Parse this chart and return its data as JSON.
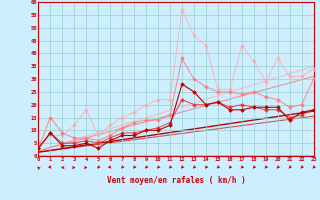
{
  "xlabel": "Vent moyen/en rafales ( km/h )",
  "background_color": "#cceeff",
  "grid_color": "#99cccc",
  "x_ticks": [
    0,
    1,
    2,
    3,
    4,
    5,
    6,
    7,
    8,
    9,
    10,
    11,
    12,
    13,
    14,
    15,
    16,
    17,
    18,
    19,
    20,
    21,
    22,
    23
  ],
  "ylim": [
    0,
    60
  ],
  "yticks": [
    0,
    5,
    10,
    15,
    20,
    25,
    30,
    35,
    40,
    45,
    50,
    55,
    60
  ],
  "xlim": [
    0,
    23
  ],
  "lines": [
    {
      "x": [
        0,
        1,
        2,
        3,
        4,
        5,
        6,
        7,
        8,
        9,
        10,
        11,
        12,
        13,
        14,
        15,
        16,
        17,
        18,
        19,
        20,
        21,
        22,
        23
      ],
      "y": [
        3,
        8,
        8,
        12,
        18,
        8,
        12,
        15,
        17,
        20,
        22,
        22,
        57,
        47,
        43,
        26,
        26,
        43,
        37,
        29,
        38,
        31,
        31,
        34
      ],
      "color": "#ffaaaa",
      "marker": "D",
      "markersize": 2.0,
      "linewidth": 0.7,
      "alpha": 0.8
    },
    {
      "x": [
        0,
        1,
        2,
        3,
        4,
        5,
        6,
        7,
        8,
        9,
        10,
        11,
        12,
        13,
        14,
        15,
        16,
        17,
        18,
        19,
        20,
        21,
        22,
        23
      ],
      "y": [
        3,
        15,
        9,
        7,
        7,
        6,
        8,
        11,
        13,
        14,
        14,
        16,
        38,
        30,
        27,
        25,
        25,
        24,
        25,
        23,
        22,
        19,
        20,
        30
      ],
      "color": "#ff7777",
      "marker": "D",
      "markersize": 2.0,
      "linewidth": 0.7,
      "alpha": 0.85
    },
    {
      "x": [
        0,
        1,
        2,
        3,
        4,
        5,
        6,
        7,
        8,
        9,
        10,
        11,
        12,
        13,
        14,
        15,
        16,
        17,
        18,
        19,
        20,
        21,
        22,
        23
      ],
      "y": [
        3,
        9,
        5,
        5,
        6,
        5,
        7,
        9,
        9,
        10,
        11,
        13,
        22,
        20,
        20,
        21,
        19,
        20,
        19,
        18,
        18,
        15,
        16,
        18
      ],
      "color": "#dd3333",
      "marker": "D",
      "markersize": 2.0,
      "linewidth": 0.7,
      "alpha": 0.9
    },
    {
      "x": [
        0,
        1,
        2,
        3,
        4,
        5,
        6,
        7,
        8,
        9,
        10,
        11,
        12,
        13,
        14,
        15,
        16,
        17,
        18,
        19,
        20,
        21,
        22,
        23
      ],
      "y": [
        3,
        9,
        4,
        4,
        5,
        3,
        6,
        8,
        8,
        10,
        10,
        12,
        28,
        25,
        20,
        21,
        18,
        18,
        19,
        19,
        19,
        14,
        17,
        18
      ],
      "color": "#bb0000",
      "marker": "D",
      "markersize": 2.0,
      "linewidth": 0.8,
      "alpha": 1.0
    }
  ],
  "ref_lines": [
    {
      "x": [
        0,
        23
      ],
      "y": [
        2.0,
        35.0
      ],
      "color": "#ffaaaa",
      "linewidth": 0.8,
      "alpha": 0.7
    },
    {
      "x": [
        0,
        23
      ],
      "y": [
        2.0,
        31.0
      ],
      "color": "#ff7777",
      "linewidth": 0.8,
      "alpha": 0.8
    },
    {
      "x": [
        0,
        23
      ],
      "y": [
        1.5,
        15.5
      ],
      "color": "#dd3333",
      "linewidth": 0.8,
      "alpha": 0.85
    },
    {
      "x": [
        0,
        23
      ],
      "y": [
        1.5,
        17.5
      ],
      "color": "#bb0000",
      "linewidth": 1.0,
      "alpha": 1.0
    }
  ],
  "wind_symbols": {
    "x": [
      0,
      1,
      2,
      3,
      4,
      5,
      6,
      7,
      8,
      9,
      10,
      11,
      12,
      13,
      14,
      15,
      16,
      17,
      18,
      19,
      20,
      21,
      22,
      23
    ],
    "directions": [
      225,
      45,
      270,
      90,
      90,
      315,
      45,
      315,
      315,
      315,
      315,
      315,
      315,
      315,
      315,
      315,
      315,
      315,
      315,
      315,
      315,
      315,
      315,
      315
    ]
  }
}
